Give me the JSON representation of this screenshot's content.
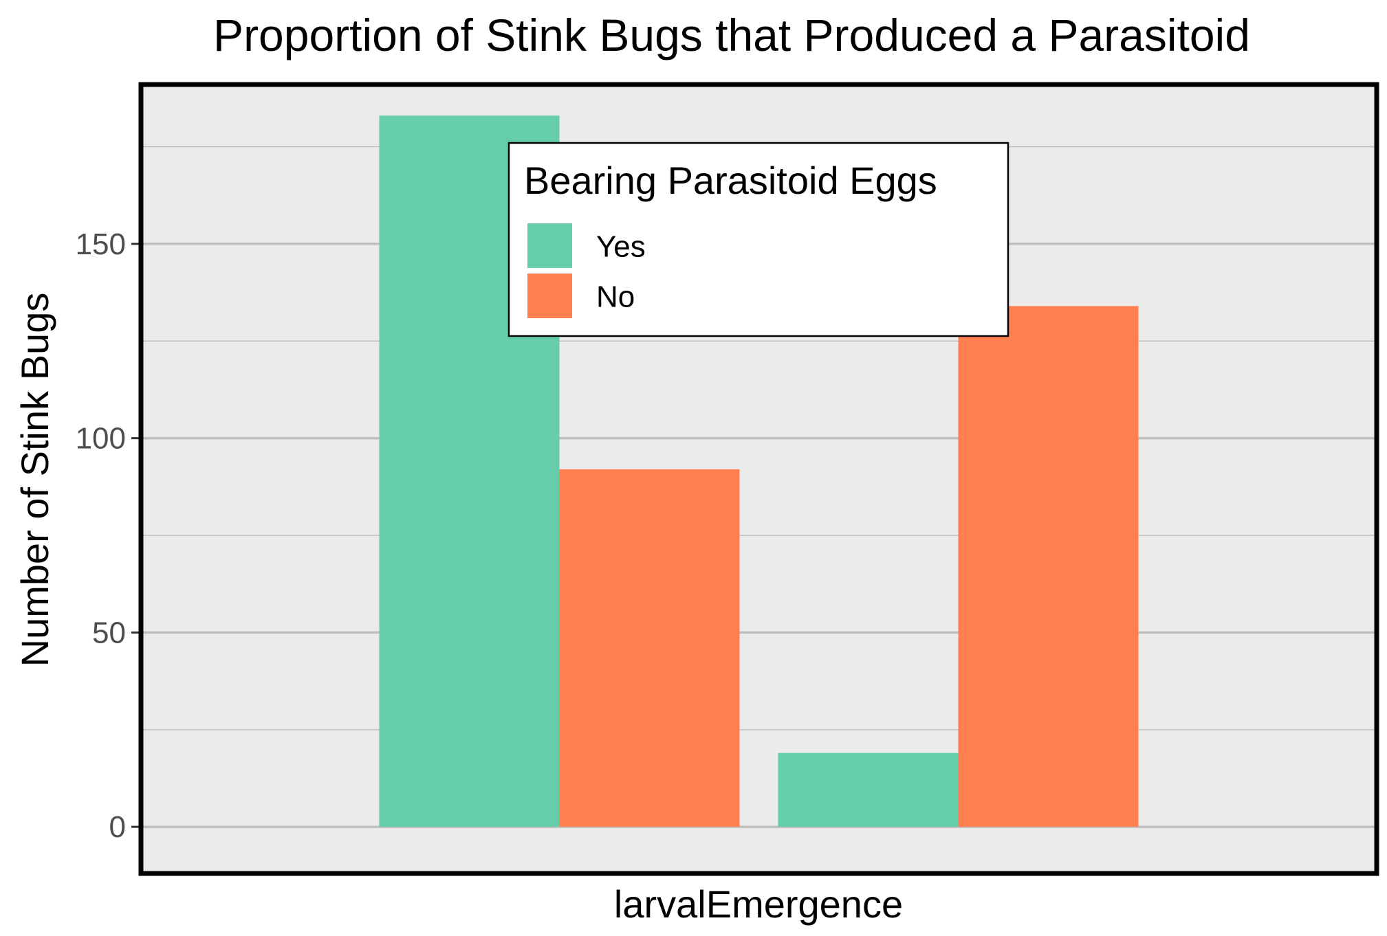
{
  "chart_data": {
    "type": "bar",
    "title": "Proportion of Stink Bugs that Produced a Parasitoid",
    "xlabel": "larvalEmergence",
    "ylabel": "Number of Stink Bugs",
    "ylim": [
      -12,
      191
    ],
    "yticks": [
      0,
      50,
      100,
      150
    ],
    "grid": true,
    "legend": {
      "title": "Bearing Parasitoid Eggs",
      "placement": "top-center"
    },
    "groups": [
      "",
      ""
    ],
    "series": [
      {
        "name": "Yes",
        "color": "#66CDAA",
        "values": [
          183,
          19
        ]
      },
      {
        "name": "No",
        "color": "#FF7F50",
        "values": [
          92,
          134
        ]
      }
    ],
    "colors": {
      "panel_background": "#EBEBEB",
      "gridline": "#BEBEBE",
      "panel_border": "#000000",
      "tick_label": "#4D4D4D"
    }
  }
}
